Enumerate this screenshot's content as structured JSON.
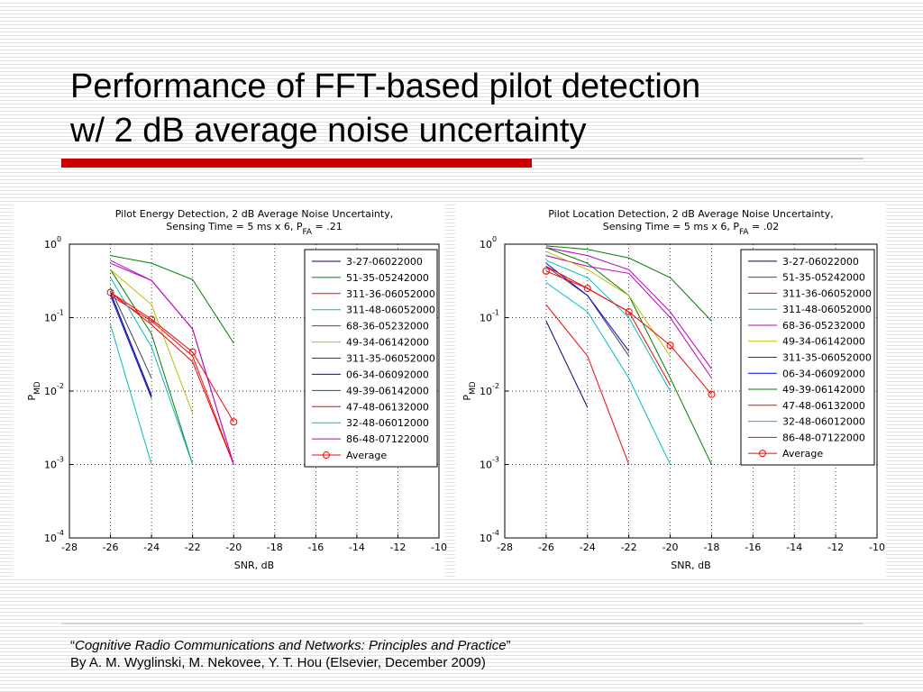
{
  "slide": {
    "title_lines": [
      "Performance of FFT-based pilot detection",
      "w/ 2 dB average noise uncertainty"
    ],
    "citation": {
      "quote_open": "“",
      "book_title": "Cognitive Radio Communications and Networks: Principles and Practice",
      "quote_close": "”",
      "authors": "By A. M. Wyglinski, M. Nekovee, Y. T. Hou (Elsevier, December 2009)"
    }
  },
  "chart_data": [
    {
      "type": "line",
      "title": "Pilot Energy Detection, 2 dB Average Noise Uncertainty,",
      "subtitle": {
        "text": "Sensing Time = 5 ms x 6, P",
        "sub": "FA",
        "tail": " = .21"
      },
      "x_label": "SNR, dB",
      "y_label": {
        "text": "P",
        "sub": "MD"
      },
      "x": [
        -26,
        -24,
        -22,
        -20
      ],
      "xlim": [
        -28,
        -10
      ],
      "xticks": [
        -28,
        -26,
        -24,
        -22,
        -20,
        -18,
        -16,
        -14,
        -12,
        -10
      ],
      "log_y": true,
      "ylim": [
        0.0001,
        1
      ],
      "yticks": [
        {
          "value": 0.0001,
          "label": "10",
          "exponent": "-4"
        },
        {
          "value": 0.001,
          "label": "10",
          "exponent": "-3"
        },
        {
          "value": 0.01,
          "label": "10",
          "exponent": "-2"
        },
        {
          "value": 0.1,
          "label": "10",
          "exponent": "-1"
        },
        {
          "value": 1,
          "label": "10",
          "exponent": "0"
        }
      ],
      "grid": true,
      "legend": "upper right",
      "series": [
        {
          "name": "3-27-06022000",
          "color": "#00007f",
          "values": [
            0.22,
            0.0087,
            null,
            null
          ]
        },
        {
          "name": "51-35-05242000",
          "color": "#008000",
          "values": [
            0.45,
            0.06,
            0.001,
            null
          ]
        },
        {
          "name": "311-36-06052000",
          "color": "#ff0000",
          "values": [
            0.2,
            0.09,
            0.03,
            0.001
          ]
        },
        {
          "name": "311-48-06052000",
          "color": "#00bfbf",
          "values": [
            0.08,
            0.001,
            null,
            null
          ]
        },
        {
          "name": "68-36-05232000",
          "color": "#bf00bf",
          "values": [
            0.55,
            0.32,
            0.07,
            0.001
          ]
        },
        {
          "name": "49-34-06142000",
          "color": "#bfbf00",
          "values": [
            0.45,
            0.15,
            0.005,
            null
          ]
        },
        {
          "name": "311-35-06052000",
          "color": "#404040",
          "values": [
            0.25,
            0.015,
            null,
            null
          ]
        },
        {
          "name": "06-34-06092000",
          "color": "#0000ff",
          "values": [
            0.2,
            0.008,
            null,
            null
          ]
        },
        {
          "name": "49-39-06142000",
          "color": "#008000",
          "values": [
            0.7,
            0.55,
            0.33,
            0.045
          ]
        },
        {
          "name": "47-48-06132000",
          "color": "#ff0000",
          "values": [
            0.22,
            0.08,
            0.025,
            0.001
          ]
        },
        {
          "name": "32-48-06012000",
          "color": "#00bfbf",
          "values": [
            0.35,
            0.04,
            0.001,
            null
          ]
        },
        {
          "name": "86-48-07122000",
          "color": "#bf00bf",
          "values": [
            0.6,
            0.32,
            0.07,
            0.001
          ]
        },
        {
          "name": "Average",
          "color": "#ff0000",
          "marker": "o",
          "values": [
            0.22,
            0.095,
            0.034,
            0.0038
          ]
        }
      ]
    },
    {
      "type": "line",
      "title": "Pilot Location Detection, 2 dB Average Noise Uncertainty,",
      "subtitle": {
        "text": "Sensing Time = 5 ms x 6, P",
        "sub": "FA",
        "tail": " = .02"
      },
      "x_label": "SNR, dB",
      "y_label": {
        "text": "P",
        "sub": "MD"
      },
      "x": [
        -26,
        -24,
        -22,
        -20,
        -18
      ],
      "xlim": [
        -28,
        -10
      ],
      "xticks": [
        -28,
        -26,
        -24,
        -22,
        -20,
        -18,
        -16,
        -14,
        -12,
        -10
      ],
      "log_y": true,
      "ylim": [
        0.0001,
        1
      ],
      "yticks": [
        {
          "value": 0.0001,
          "label": "10",
          "exponent": "-4"
        },
        {
          "value": 0.001,
          "label": "10",
          "exponent": "-3"
        },
        {
          "value": 0.01,
          "label": "10",
          "exponent": "-2"
        },
        {
          "value": 0.1,
          "label": "10",
          "exponent": "-1"
        },
        {
          "value": 1,
          "label": "10",
          "exponent": "0"
        }
      ],
      "grid": true,
      "legend": "upper right",
      "series": [
        {
          "name": "3-27-06022000",
          "color": "#00007f",
          "values": [
            0.09,
            0.006,
            null,
            null,
            null
          ]
        },
        {
          "name": "51-35-05242000",
          "color": "#008000",
          "values": [
            0.9,
            0.55,
            0.2,
            0.015,
            0.001
          ]
        },
        {
          "name": "311-36-06052000",
          "color": "#ff0000",
          "values": [
            0.15,
            0.03,
            0.001,
            null,
            null
          ]
        },
        {
          "name": "311-48-06052000",
          "color": "#00bfbf",
          "values": [
            0.3,
            0.12,
            0.015,
            0.001,
            null
          ]
        },
        {
          "name": "68-36-05232000",
          "color": "#bf00bf",
          "values": [
            0.7,
            0.5,
            0.4,
            0.1,
            0.015
          ]
        },
        {
          "name": "49-34-06142000",
          "color": "#bfbf00",
          "values": [
            0.8,
            0.45,
            0.2,
            0.03,
            null
          ]
        },
        {
          "name": "311-35-06052000",
          "color": "#404040",
          "values": [
            0.5,
            0.2,
            0.03,
            null,
            null
          ]
        },
        {
          "name": "06-34-06092000",
          "color": "#0000ff",
          "values": [
            0.55,
            0.2,
            0.035,
            null,
            null
          ]
        },
        {
          "name": "49-39-06142000",
          "color": "#008000",
          "values": [
            0.95,
            0.85,
            0.65,
            0.35,
            0.09
          ]
        },
        {
          "name": "47-48-06132000",
          "color": "#ff0000",
          "values": [
            0.5,
            0.25,
            0.12,
            0.012,
            null
          ]
        },
        {
          "name": "32-48-06012000",
          "color": "#00bfbf",
          "values": [
            0.6,
            0.35,
            0.1,
            0.01,
            null
          ]
        },
        {
          "name": "86-48-07122000",
          "color": "#bf00bf",
          "values": [
            0.9,
            0.7,
            0.45,
            0.12,
            0.02
          ]
        },
        {
          "name": "Average",
          "color": "#ff0000",
          "marker": "o",
          "values": [
            0.43,
            0.25,
            0.12,
            0.042,
            0.009
          ]
        }
      ]
    }
  ]
}
